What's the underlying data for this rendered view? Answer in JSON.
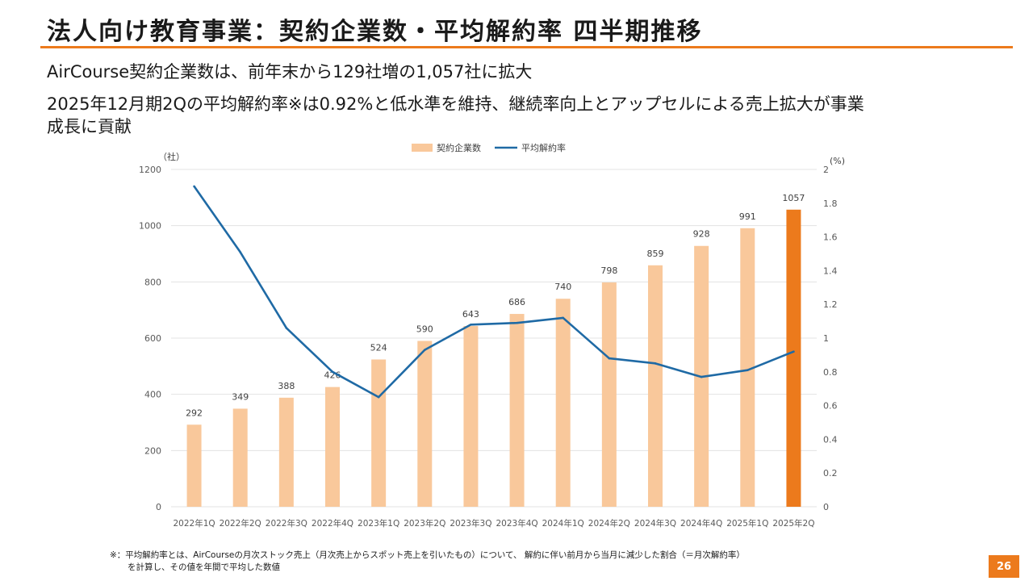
{
  "title": "法人向け教育事業：契約企業数・平均解約率 四半期推移",
  "bullets": [
    "AirCourse契約企業数は、前年末から129社増の1,057社に拡大",
    "2025年12月期2Qの平均解約率※は0.92%と低水準を維持、継続率向上とアップセルによる売上拡大が事業",
    "成長に貢献"
  ],
  "chart_data": {
    "type": "bar",
    "categories": [
      "2022年1Q",
      "2022年2Q",
      "2022年3Q",
      "2022年4Q",
      "2023年1Q",
      "2023年2Q",
      "2023年3Q",
      "2023年4Q",
      "2024年1Q",
      "2024年2Q",
      "2024年3Q",
      "2024年4Q",
      "2025年1Q",
      "2025年2Q"
    ],
    "series": [
      {
        "name": "契約企業数",
        "type": "bar",
        "axis": "left",
        "color": "#f9c89b",
        "highlight_color": "#ec7a1c",
        "highlight_index": 13,
        "values": [
          292,
          349,
          388,
          426,
          524,
          590,
          643,
          686,
          740,
          798,
          859,
          928,
          991,
          1057
        ]
      },
      {
        "name": "平均解約率",
        "type": "line",
        "axis": "right",
        "color": "#1f6aa5",
        "values": [
          1.9,
          1.51,
          1.06,
          0.8,
          0.65,
          0.93,
          1.08,
          1.09,
          1.12,
          0.88,
          0.85,
          0.77,
          0.81,
          0.92
        ]
      }
    ],
    "yleft": {
      "unit": "（社）",
      "min": 0,
      "max": 1200,
      "ticks": [
        0,
        200,
        400,
        600,
        800,
        1000,
        1200
      ]
    },
    "yright": {
      "unit": "(%)",
      "min": 0,
      "max": 2,
      "ticks": [
        "0",
        "0.2",
        "0.4",
        "0.6",
        "0.8",
        "1",
        "1.2",
        "1.4",
        "1.6",
        "1.8",
        "2"
      ]
    },
    "legend_position": "top-center",
    "grid": true
  },
  "footnote": {
    "line1": "※：平均解約率とは、AirCourseの月次ストック売上（月次売上からスポット売上を引いたもの）について、 解約に伴い前月から当月に減少した割合（＝月次解約率）",
    "line2": "を計算し、その値を年間で平均した数値"
  },
  "page_number": "26",
  "colors": {
    "accent": "#ec7a1c",
    "bar": "#f9c89b",
    "line": "#1f6aa5",
    "grid": "#e3e3e3"
  }
}
